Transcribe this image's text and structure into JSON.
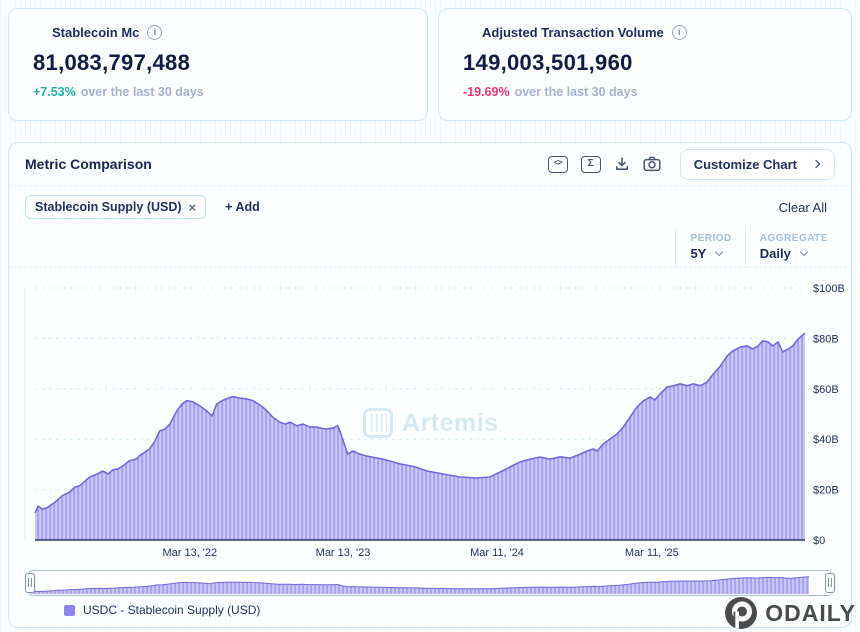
{
  "icons": {
    "info": "i",
    "close": "×",
    "code": "<>",
    "sigma": "Σ",
    "add_prefix": "+"
  },
  "cards": [
    {
      "title": "Stablecoin Mc",
      "value": "81,083,797,488",
      "delta": "+7.53%",
      "delta_dir": "up",
      "delta_suffix": "over the last 30 days"
    },
    {
      "title": "Adjusted Transaction Volume",
      "value": "149,003,501,960",
      "delta": "-19.69%",
      "delta_dir": "down",
      "delta_suffix": "over the last 30 days"
    }
  ],
  "panel": {
    "title": "Metric Comparison",
    "customize_button": "Customize Chart",
    "chip": "Stablecoin Supply (USD)",
    "add_label": "+ Add",
    "clear_all": "Clear All",
    "period_label": "PERIOD",
    "period_value": "5Y",
    "aggregate_label": "AGGREGATE",
    "aggregate_value": "Daily",
    "watermark": "Artemis",
    "legend": "USDC - Stablecoin Supply (USD)"
  },
  "footer": {
    "logo_text": "ODAILY"
  },
  "chart_data": {
    "type": "area",
    "title": "USDC - Stablecoin Supply (USD)",
    "period": "5Y",
    "aggregate": "Daily",
    "ylim": [
      0,
      100
    ],
    "y_unit": "USD billions",
    "grid": "horizontal dashed",
    "legend_position": "bottom-left",
    "y_ticks": [
      {
        "v": 0,
        "label": "$0"
      },
      {
        "v": 20,
        "label": "$20B"
      },
      {
        "v": 40,
        "label": "$40B"
      },
      {
        "v": 60,
        "label": "$60B"
      },
      {
        "v": 80,
        "label": "$80B"
      },
      {
        "v": 100,
        "label": "$100B"
      }
    ],
    "x_ticks": [
      {
        "pos": 0.201,
        "label": "Mar 13, '22"
      },
      {
        "pos": 0.4,
        "label": "Mar 13, '23"
      },
      {
        "pos": 0.6,
        "label": "Mar 11, '24"
      },
      {
        "pos": 0.801,
        "label": "Mar 11, '25"
      }
    ],
    "colors": {
      "area_base": "#a9a2f0",
      "area_stripe": "#cfcbf8",
      "line": "#7467de",
      "grid": "#cdeaf3",
      "axis": "#2a3a64"
    },
    "series": [
      {
        "name": "USDC - Stablecoin Supply (USD)",
        "points": [
          [
            0,
            10.7
          ],
          [
            0.004,
            13.4
          ],
          [
            0.01,
            12.2
          ],
          [
            0.017,
            13
          ],
          [
            0.026,
            15
          ],
          [
            0.035,
            17.5
          ],
          [
            0.045,
            19
          ],
          [
            0.052,
            21
          ],
          [
            0.058,
            21.5
          ],
          [
            0.071,
            25
          ],
          [
            0.081,
            26.2
          ],
          [
            0.088,
            27.4
          ],
          [
            0.095,
            26.2
          ],
          [
            0.101,
            27.8
          ],
          [
            0.108,
            28.2
          ],
          [
            0.114,
            29.4
          ],
          [
            0.123,
            31.5
          ],
          [
            0.132,
            32.2
          ],
          [
            0.136,
            33.5
          ],
          [
            0.149,
            36.2
          ],
          [
            0.156,
            39.4
          ],
          [
            0.162,
            43.3
          ],
          [
            0.169,
            44
          ],
          [
            0.175,
            46
          ],
          [
            0.184,
            51.2
          ],
          [
            0.191,
            54
          ],
          [
            0.197,
            55.3
          ],
          [
            0.205,
            54.8
          ],
          [
            0.214,
            53.2
          ],
          [
            0.223,
            51.2
          ],
          [
            0.23,
            49.2
          ],
          [
            0.236,
            54
          ],
          [
            0.243,
            55.3
          ],
          [
            0.251,
            56.3
          ],
          [
            0.257,
            56.9
          ],
          [
            0.266,
            56.3
          ],
          [
            0.275,
            56
          ],
          [
            0.283,
            55.3
          ],
          [
            0.29,
            54
          ],
          [
            0.296,
            52.7
          ],
          [
            0.303,
            50.7
          ],
          [
            0.309,
            48.7
          ],
          [
            0.318,
            46.8
          ],
          [
            0.325,
            46
          ],
          [
            0.331,
            46.8
          ],
          [
            0.34,
            45.3
          ],
          [
            0.348,
            46
          ],
          [
            0.357,
            44.8
          ],
          [
            0.366,
            44.8
          ],
          [
            0.377,
            44
          ],
          [
            0.387,
            44.4
          ],
          [
            0.393,
            45.3
          ],
          [
            0.396,
            43.3
          ],
          [
            0.403,
            36.9
          ],
          [
            0.406,
            34.1
          ],
          [
            0.413,
            35.3
          ],
          [
            0.422,
            34.1
          ],
          [
            0.431,
            33.3
          ],
          [
            0.452,
            32.1
          ],
          [
            0.474,
            30.2
          ],
          [
            0.494,
            29
          ],
          [
            0.509,
            27.4
          ],
          [
            0.53,
            26.2
          ],
          [
            0.552,
            25
          ],
          [
            0.574,
            24.6
          ],
          [
            0.591,
            25
          ],
          [
            0.604,
            27
          ],
          [
            0.617,
            29
          ],
          [
            0.63,
            31
          ],
          [
            0.643,
            32.1
          ],
          [
            0.656,
            32.9
          ],
          [
            0.669,
            32.1
          ],
          [
            0.682,
            33
          ],
          [
            0.695,
            32.5
          ],
          [
            0.708,
            34.1
          ],
          [
            0.717,
            35.3
          ],
          [
            0.725,
            36.1
          ],
          [
            0.73,
            35.3
          ],
          [
            0.738,
            38.1
          ],
          [
            0.747,
            40.1
          ],
          [
            0.756,
            42.1
          ],
          [
            0.764,
            44.8
          ],
          [
            0.773,
            48.8
          ],
          [
            0.782,
            52.8
          ],
          [
            0.79,
            55.2
          ],
          [
            0.799,
            56.7
          ],
          [
            0.805,
            55.6
          ],
          [
            0.812,
            58
          ],
          [
            0.821,
            60.7
          ],
          [
            0.829,
            61.2
          ],
          [
            0.838,
            62
          ],
          [
            0.847,
            61.2
          ],
          [
            0.855,
            62
          ],
          [
            0.864,
            61.2
          ],
          [
            0.873,
            62.7
          ],
          [
            0.881,
            65.9
          ],
          [
            0.89,
            69
          ],
          [
            0.899,
            73
          ],
          [
            0.906,
            75
          ],
          [
            0.916,
            76.6
          ],
          [
            0.925,
            77
          ],
          [
            0.932,
            75.8
          ],
          [
            0.939,
            77
          ],
          [
            0.945,
            79
          ],
          [
            0.952,
            78.6
          ],
          [
            0.958,
            77
          ],
          [
            0.965,
            78.6
          ],
          [
            0.971,
            74.6
          ],
          [
            0.978,
            75.8
          ],
          [
            0.984,
            77
          ],
          [
            0.991,
            79.8
          ],
          [
            1,
            82.1
          ]
        ]
      }
    ]
  }
}
